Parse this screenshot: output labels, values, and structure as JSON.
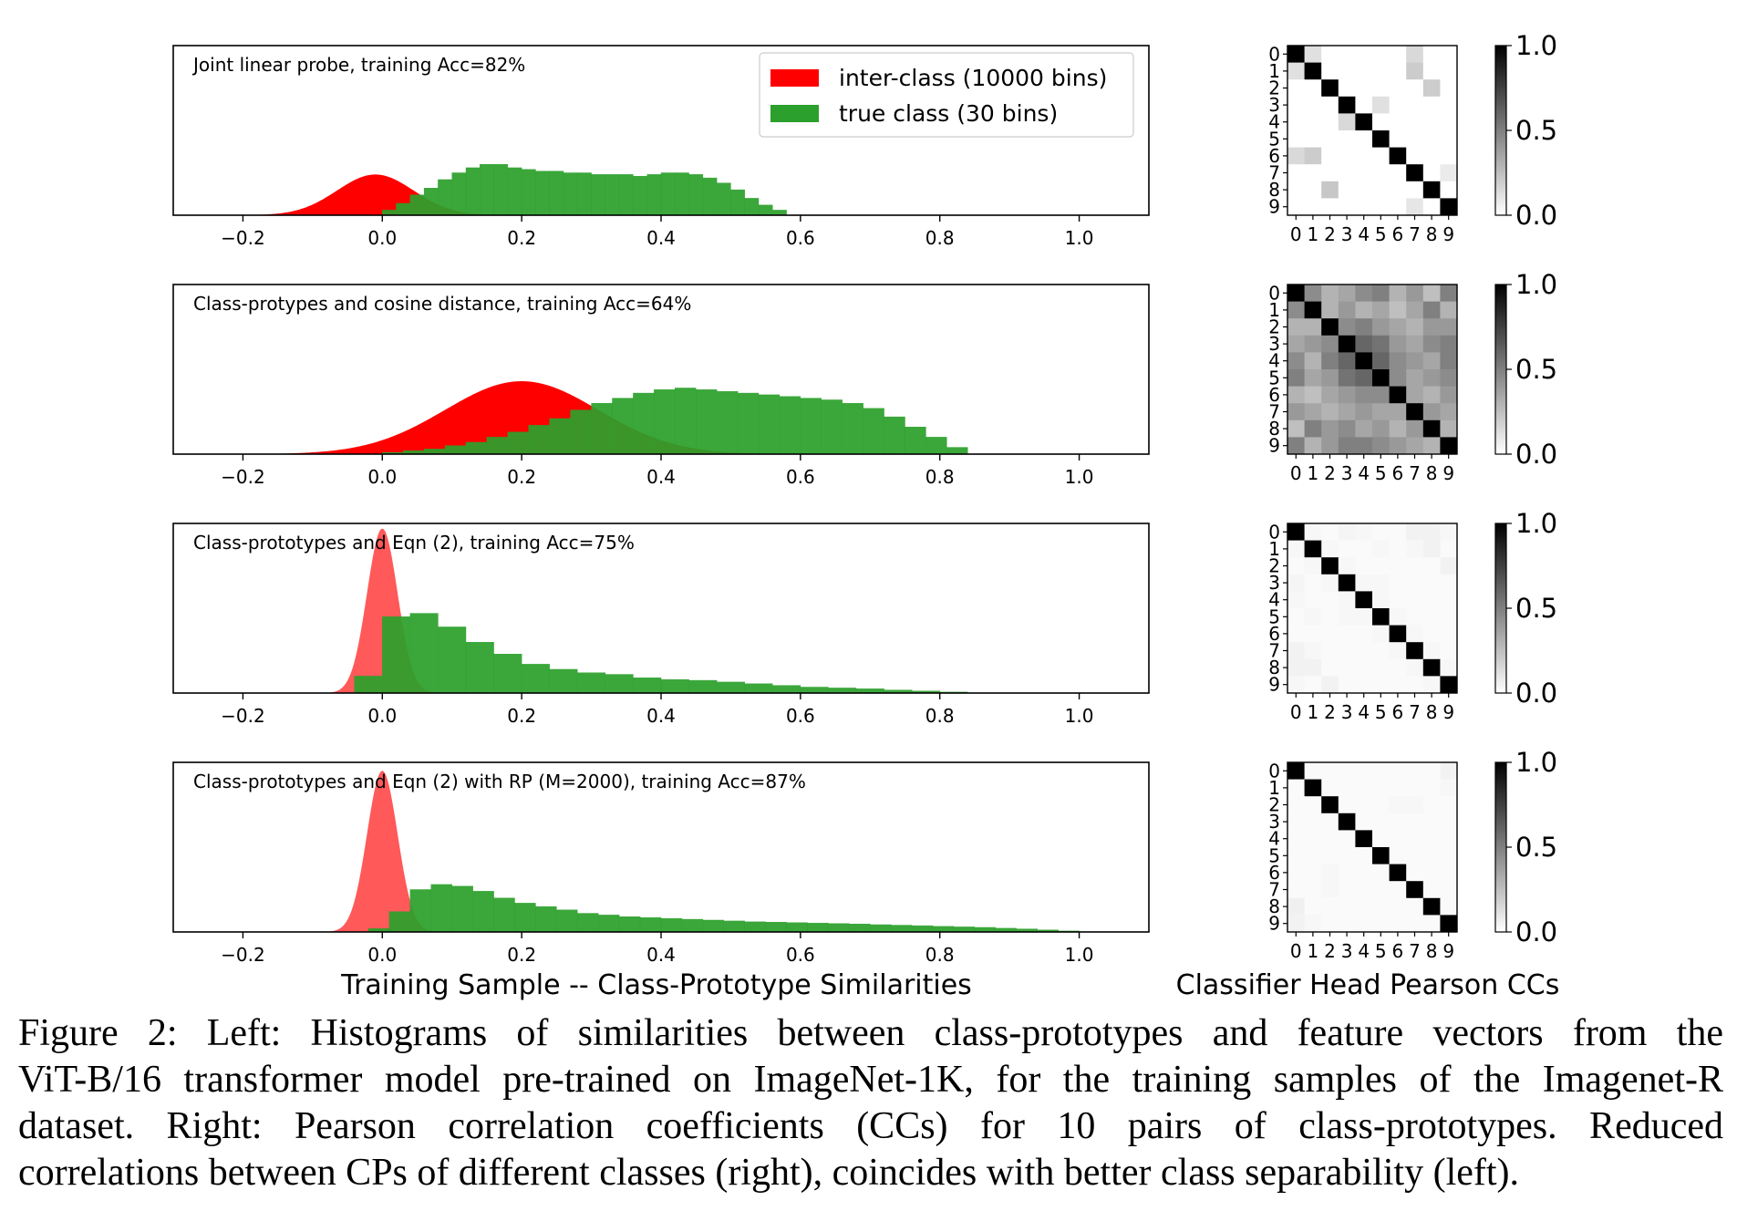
{
  "legend": {
    "inter_label": "inter-class (10000 bins)",
    "true_label": "true class (30 bins)",
    "inter_color": "#ff0000",
    "true_color": "#2ca02c"
  },
  "shared_x_ticks": [
    "−0.2",
    "0.0",
    "0.2",
    "0.4",
    "0.6",
    "0.8",
    "1.0"
  ],
  "left_xlabel": "Training Sample -- Class-Prototype Similarities",
  "right_xlabel": "Classifier Head Pearson CCs",
  "colorbar_ticks": [
    "1.0",
    "0.5",
    "0.0"
  ],
  "matrix_ticks": [
    "0",
    "1",
    "2",
    "3",
    "4",
    "5",
    "6",
    "7",
    "8",
    "9"
  ],
  "chart_data": [
    {
      "type": "histogram",
      "title": "Joint linear probe, training Acc=82%",
      "xlim": [
        -0.3,
        1.1
      ],
      "inter_class": {
        "distribution": "gaussian",
        "mean": -0.01,
        "std": 0.055,
        "peak": 0.24,
        "opacity": 1.0
      },
      "true_class": {
        "bin_edges": [
          0.0,
          0.02,
          0.04,
          0.06,
          0.08,
          0.1,
          0.12,
          0.14,
          0.16,
          0.18,
          0.2,
          0.22,
          0.24,
          0.26,
          0.28,
          0.3,
          0.32,
          0.34,
          0.36,
          0.38,
          0.4,
          0.42,
          0.44,
          0.46,
          0.48,
          0.5,
          0.52,
          0.54,
          0.56,
          0.58
        ],
        "values": [
          0.03,
          0.07,
          0.12,
          0.16,
          0.21,
          0.25,
          0.28,
          0.3,
          0.3,
          0.28,
          0.27,
          0.26,
          0.26,
          0.25,
          0.25,
          0.24,
          0.24,
          0.24,
          0.23,
          0.24,
          0.25,
          0.25,
          0.24,
          0.22,
          0.19,
          0.15,
          0.1,
          0.06,
          0.03
        ]
      }
    },
    {
      "type": "histogram",
      "title": "Class-protypes and cosine distance, training Acc=64%",
      "xlim": [
        -0.3,
        1.1
      ],
      "inter_class": {
        "distribution": "gaussian",
        "mean": 0.2,
        "std": 0.11,
        "peak": 0.43,
        "opacity": 1.0
      },
      "true_class": {
        "bin_edges": [
          0.0,
          0.03,
          0.06,
          0.09,
          0.12,
          0.15,
          0.18,
          0.21,
          0.24,
          0.27,
          0.3,
          0.33,
          0.36,
          0.39,
          0.42,
          0.45,
          0.48,
          0.51,
          0.54,
          0.57,
          0.6,
          0.63,
          0.66,
          0.69,
          0.72,
          0.75,
          0.78,
          0.81,
          0.84
        ],
        "values": [
          0.01,
          0.02,
          0.03,
          0.05,
          0.07,
          0.1,
          0.13,
          0.17,
          0.21,
          0.26,
          0.3,
          0.33,
          0.36,
          0.38,
          0.39,
          0.38,
          0.37,
          0.36,
          0.35,
          0.34,
          0.33,
          0.32,
          0.3,
          0.27,
          0.22,
          0.16,
          0.1,
          0.04
        ]
      }
    },
    {
      "type": "histogram",
      "title": "Class-prototypes and Eqn (2), training Acc=75%",
      "xlim": [
        -0.3,
        1.1
      ],
      "inter_class": {
        "distribution": "gaussian",
        "mean": 0.0,
        "std": 0.022,
        "peak": 0.97,
        "opacity": 0.65
      },
      "true_class": {
        "bin_edges": [
          -0.04,
          0.0,
          0.04,
          0.08,
          0.12,
          0.16,
          0.2,
          0.24,
          0.28,
          0.32,
          0.36,
          0.4,
          0.44,
          0.48,
          0.52,
          0.56,
          0.6,
          0.64,
          0.68,
          0.72,
          0.76,
          0.8,
          0.84
        ],
        "values": [
          0.1,
          0.45,
          0.47,
          0.39,
          0.3,
          0.23,
          0.17,
          0.14,
          0.12,
          0.11,
          0.09,
          0.08,
          0.075,
          0.065,
          0.055,
          0.045,
          0.035,
          0.03,
          0.025,
          0.018,
          0.012,
          0.006
        ]
      }
    },
    {
      "type": "histogram",
      "title": "Class-prototypes and Eqn (2) with RP (M=2000), training Acc=87%",
      "xlim": [
        -0.3,
        1.1
      ],
      "inter_class": {
        "distribution": "gaussian",
        "mean": 0.0,
        "std": 0.022,
        "peak": 0.95,
        "opacity": 0.65
      },
      "true_class": {
        "bin_edges": [
          -0.02,
          0.01,
          0.04,
          0.07,
          0.1,
          0.13,
          0.16,
          0.19,
          0.22,
          0.25,
          0.28,
          0.31,
          0.34,
          0.37,
          0.4,
          0.43,
          0.46,
          0.49,
          0.52,
          0.55,
          0.58,
          0.61,
          0.64,
          0.67,
          0.7,
          0.73,
          0.76,
          0.79,
          0.82,
          0.85,
          0.88,
          0.91,
          0.94,
          0.97,
          1.0
        ],
        "values": [
          0.02,
          0.12,
          0.25,
          0.28,
          0.27,
          0.24,
          0.2,
          0.17,
          0.15,
          0.13,
          0.11,
          0.1,
          0.09,
          0.085,
          0.08,
          0.075,
          0.07,
          0.065,
          0.06,
          0.058,
          0.055,
          0.052,
          0.05,
          0.047,
          0.043,
          0.04,
          0.037,
          0.033,
          0.03,
          0.027,
          0.022,
          0.018,
          0.012,
          0.006
        ]
      }
    },
    {
      "type": "heatmap",
      "title": "",
      "colormap": "gray_r",
      "vlim": [
        0.0,
        1.0
      ],
      "labels": [
        "0",
        "1",
        "2",
        "3",
        "4",
        "5",
        "6",
        "7",
        "8",
        "9"
      ],
      "values": [
        [
          1.0,
          0.12,
          0.0,
          0.0,
          0.0,
          0.0,
          0.0,
          0.15,
          0.0,
          0.0
        ],
        [
          0.12,
          1.0,
          0.0,
          0.0,
          0.0,
          0.0,
          0.0,
          0.2,
          0.0,
          0.0
        ],
        [
          0.0,
          0.0,
          1.0,
          0.0,
          0.0,
          0.0,
          0.0,
          0.0,
          0.2,
          0.0
        ],
        [
          0.0,
          0.0,
          0.0,
          1.0,
          0.0,
          0.12,
          0.0,
          0.0,
          0.0,
          0.0
        ],
        [
          0.0,
          0.0,
          0.0,
          0.15,
          1.0,
          0.0,
          0.0,
          0.0,
          0.0,
          0.0
        ],
        [
          0.0,
          0.0,
          0.0,
          0.0,
          0.0,
          1.0,
          0.0,
          0.0,
          0.0,
          0.0
        ],
        [
          0.15,
          0.2,
          0.0,
          0.0,
          0.0,
          0.0,
          1.0,
          0.0,
          0.0,
          0.0
        ],
        [
          0.0,
          0.0,
          0.0,
          0.0,
          0.0,
          0.0,
          0.0,
          1.0,
          0.0,
          0.08
        ],
        [
          0.0,
          0.0,
          0.22,
          0.0,
          0.0,
          0.0,
          0.0,
          0.0,
          1.0,
          0.0
        ],
        [
          0.0,
          0.0,
          0.0,
          0.0,
          0.0,
          0.0,
          0.0,
          0.1,
          0.0,
          1.0
        ]
      ]
    },
    {
      "type": "heatmap",
      "title": "",
      "colormap": "gray_r",
      "vlim": [
        0.0,
        1.0
      ],
      "labels": [
        "0",
        "1",
        "2",
        "3",
        "4",
        "5",
        "6",
        "7",
        "8",
        "9"
      ],
      "values": [
        [
          1.0,
          0.45,
          0.3,
          0.35,
          0.45,
          0.5,
          0.3,
          0.4,
          0.25,
          0.5
        ],
        [
          0.45,
          1.0,
          0.3,
          0.4,
          0.3,
          0.35,
          0.25,
          0.35,
          0.5,
          0.3
        ],
        [
          0.3,
          0.3,
          1.0,
          0.45,
          0.5,
          0.4,
          0.35,
          0.3,
          0.4,
          0.4
        ],
        [
          0.35,
          0.4,
          0.45,
          1.0,
          0.6,
          0.55,
          0.4,
          0.35,
          0.45,
          0.5
        ],
        [
          0.45,
          0.3,
          0.5,
          0.6,
          1.0,
          0.6,
          0.45,
          0.4,
          0.35,
          0.5
        ],
        [
          0.5,
          0.35,
          0.4,
          0.55,
          0.6,
          1.0,
          0.45,
          0.35,
          0.4,
          0.45
        ],
        [
          0.3,
          0.25,
          0.35,
          0.4,
          0.45,
          0.45,
          1.0,
          0.35,
          0.3,
          0.4
        ],
        [
          0.4,
          0.35,
          0.3,
          0.35,
          0.4,
          0.35,
          0.35,
          1.0,
          0.4,
          0.35
        ],
        [
          0.25,
          0.5,
          0.4,
          0.45,
          0.35,
          0.4,
          0.3,
          0.4,
          1.0,
          0.3
        ],
        [
          0.5,
          0.3,
          0.4,
          0.5,
          0.5,
          0.45,
          0.4,
          0.35,
          0.3,
          1.0
        ]
      ]
    },
    {
      "type": "heatmap",
      "title": "",
      "colormap": "gray_r",
      "vlim": [
        0.0,
        1.0
      ],
      "labels": [
        "0",
        "1",
        "2",
        "3",
        "4",
        "5",
        "6",
        "7",
        "8",
        "9"
      ],
      "values": [
        [
          1.0,
          0.03,
          0.02,
          0.04,
          0.03,
          0.02,
          0.02,
          0.05,
          0.05,
          0.03
        ],
        [
          0.03,
          1.0,
          0.03,
          0.02,
          0.02,
          0.03,
          0.02,
          0.03,
          0.05,
          0.02
        ],
        [
          0.02,
          0.03,
          1.0,
          0.03,
          0.02,
          0.02,
          0.02,
          0.02,
          0.02,
          0.05
        ],
        [
          0.04,
          0.02,
          0.03,
          1.0,
          0.03,
          0.03,
          0.02,
          0.02,
          0.02,
          0.02
        ],
        [
          0.03,
          0.02,
          0.02,
          0.03,
          1.0,
          0.03,
          0.02,
          0.02,
          0.02,
          0.02
        ],
        [
          0.02,
          0.03,
          0.02,
          0.03,
          0.03,
          1.0,
          0.03,
          0.02,
          0.02,
          0.02
        ],
        [
          0.02,
          0.02,
          0.02,
          0.02,
          0.02,
          0.03,
          1.0,
          0.03,
          0.02,
          0.02
        ],
        [
          0.05,
          0.03,
          0.02,
          0.02,
          0.02,
          0.02,
          0.03,
          1.0,
          0.03,
          0.02
        ],
        [
          0.05,
          0.05,
          0.02,
          0.02,
          0.02,
          0.02,
          0.02,
          0.03,
          1.0,
          0.03
        ],
        [
          0.03,
          0.02,
          0.05,
          0.02,
          0.02,
          0.02,
          0.02,
          0.02,
          0.03,
          1.0
        ]
      ]
    },
    {
      "type": "heatmap",
      "title": "",
      "colormap": "gray_r",
      "vlim": [
        0.0,
        1.0
      ],
      "labels": [
        "0",
        "1",
        "2",
        "3",
        "4",
        "5",
        "6",
        "7",
        "8",
        "9"
      ],
      "values": [
        [
          1.0,
          0.02,
          0.02,
          0.02,
          0.02,
          0.02,
          0.02,
          0.02,
          0.02,
          0.05
        ],
        [
          0.02,
          1.0,
          0.02,
          0.02,
          0.02,
          0.02,
          0.02,
          0.02,
          0.02,
          0.03
        ],
        [
          0.02,
          0.02,
          1.0,
          0.02,
          0.02,
          0.02,
          0.03,
          0.03,
          0.02,
          0.02
        ],
        [
          0.02,
          0.02,
          0.02,
          1.0,
          0.02,
          0.02,
          0.02,
          0.02,
          0.02,
          0.02
        ],
        [
          0.02,
          0.02,
          0.02,
          0.02,
          1.0,
          0.02,
          0.02,
          0.02,
          0.02,
          0.02
        ],
        [
          0.02,
          0.02,
          0.02,
          0.02,
          0.02,
          1.0,
          0.02,
          0.02,
          0.02,
          0.02
        ],
        [
          0.02,
          0.02,
          0.03,
          0.02,
          0.02,
          0.02,
          1.0,
          0.02,
          0.02,
          0.02
        ],
        [
          0.02,
          0.02,
          0.03,
          0.02,
          0.02,
          0.02,
          0.02,
          1.0,
          0.02,
          0.02
        ],
        [
          0.06,
          0.02,
          0.02,
          0.02,
          0.02,
          0.02,
          0.02,
          0.02,
          1.0,
          0.02
        ],
        [
          0.05,
          0.03,
          0.02,
          0.02,
          0.02,
          0.02,
          0.02,
          0.02,
          0.02,
          1.0
        ]
      ]
    }
  ],
  "caption": {
    "lines": [
      "Figure 2: Left: Histograms of similarities between class-prototypes and feature vectors from the",
      "ViT-B/16 transformer model pre-trained on ImageNet-1K, for the training samples of the Imagenet-R",
      "dataset. Right: Pearson correlation coefficients (CCs) for 10 pairs of class-prototypes. Reduced",
      "correlations between CPs of different classes (right), coincides with better class separability (left)."
    ]
  }
}
